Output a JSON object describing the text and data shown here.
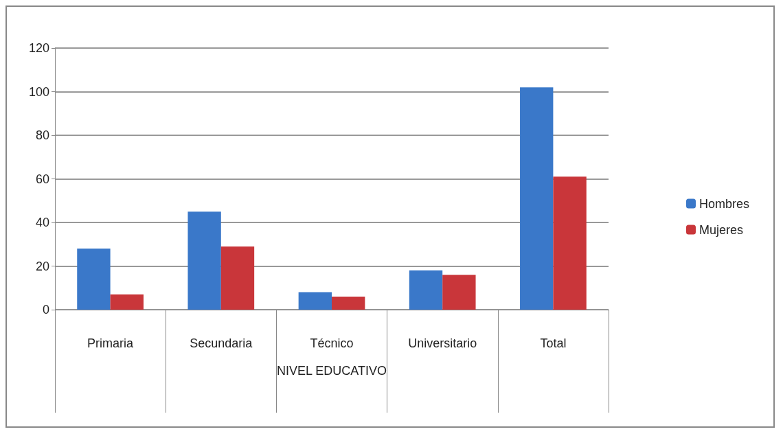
{
  "chart_data": {
    "type": "bar",
    "xlabel": "NIVEL EDUCATIVO",
    "categories": [
      "Primaria",
      "Secundaria",
      "Técnico",
      "Universitario",
      "Total"
    ],
    "series": [
      {
        "name": "Hombres",
        "color": "#3a78c9",
        "values": [
          28,
          45,
          8,
          18,
          102
        ]
      },
      {
        "name": "Mujeres",
        "color": "#c9363a",
        "values": [
          7,
          29,
          6,
          16,
          61
        ]
      }
    ],
    "ylim": [
      0,
      120
    ],
    "yticks": [
      0,
      20,
      40,
      60,
      80,
      100,
      120
    ],
    "grid": "y",
    "legend": "right"
  }
}
